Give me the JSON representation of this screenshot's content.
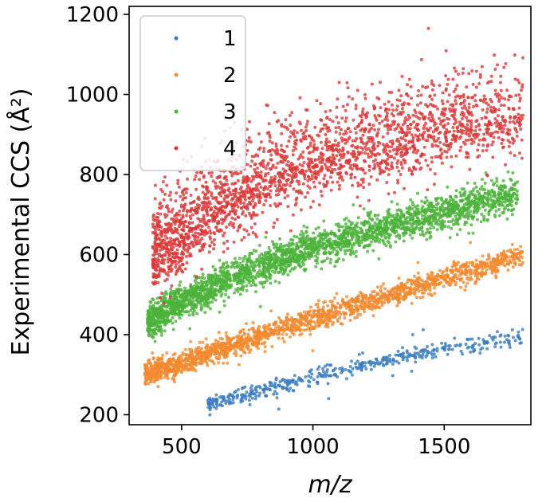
{
  "chart_data": {
    "type": "scatter",
    "xlabel": "m/z",
    "ylabel": "Experimental CCS (Å²)",
    "xlim": [
      300,
      1830
    ],
    "ylim": [
      175,
      1220
    ],
    "xticks": [
      500,
      1000,
      1500
    ],
    "yticks": [
      200,
      400,
      600,
      800,
      1000,
      1200
    ],
    "legend_position": "top-left",
    "series": [
      {
        "name": "1",
        "color": "#3a7dbf",
        "band": {
          "x_min": 600,
          "x_max": 1800,
          "x": [
            600,
            800,
            1000,
            1200,
            1400,
            1600,
            1800
          ],
          "y": [
            226,
            262,
            296,
            326,
            352,
            374,
            392
          ],
          "spread": 10
        },
        "outliers": [
          {
            "x": 870,
            "y": 214
          },
          {
            "x": 1060,
            "y": 240
          },
          {
            "x": 1380,
            "y": 400
          },
          {
            "x": 1420,
            "y": 412
          },
          {
            "x": 760,
            "y": 225
          }
        ]
      },
      {
        "name": "2",
        "color": "#f28a30",
        "band": {
          "x_min": 360,
          "x_max": 1800,
          "x": [
            360,
            500,
            700,
            900,
            1100,
            1300,
            1500,
            1700,
            1800
          ],
          "y": [
            300,
            330,
            375,
            420,
            460,
            500,
            540,
            580,
            605
          ],
          "spread": 14
        },
        "outliers": [
          {
            "x": 1000,
            "y": 360
          },
          {
            "x": 1400,
            "y": 580
          },
          {
            "x": 1600,
            "y": 630
          },
          {
            "x": 1760,
            "y": 625
          }
        ]
      },
      {
        "name": "3",
        "color": "#4bb33a",
        "band": {
          "x_min": 370,
          "x_max": 1780,
          "x": [
            370,
            500,
            700,
            900,
            1100,
            1300,
            1500,
            1700,
            1780
          ],
          "y": [
            430,
            480,
            545,
            595,
            635,
            670,
            705,
            740,
            750
          ],
          "spread": 22
        },
        "outliers": [
          {
            "x": 950,
            "y": 760
          },
          {
            "x": 1700,
            "y": 790
          },
          {
            "x": 1760,
            "y": 700
          },
          {
            "x": 800,
            "y": 470
          }
        ]
      },
      {
        "name": "4",
        "color": "#d93a3a",
        "band": {
          "x_min": 390,
          "x_max": 1800,
          "x": [
            390,
            500,
            650,
            800,
            950,
            1100,
            1300,
            1500,
            1700,
            1800
          ],
          "y": [
            600,
            650,
            720,
            780,
            830,
            850,
            880,
            910,
            935,
            940
          ],
          "spread": 45
        },
        "outliers": [
          {
            "x": 1440,
            "y": 1165
          },
          {
            "x": 1300,
            "y": 1005
          },
          {
            "x": 1100,
            "y": 1030
          },
          {
            "x": 1790,
            "y": 925
          },
          {
            "x": 430,
            "y": 560
          },
          {
            "x": 1200,
            "y": 990
          }
        ]
      }
    ]
  }
}
